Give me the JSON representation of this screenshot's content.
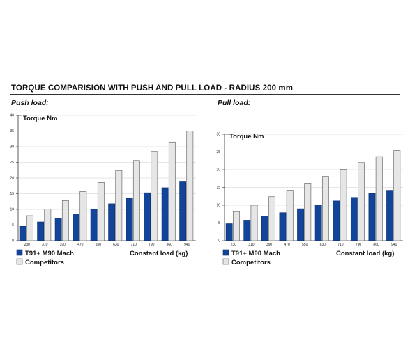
{
  "title": "TORQUE COMPARISION WITH PUSH AND PULL LOAD - RADIUS 200 mm",
  "colors": {
    "series_primary": "#12449a",
    "series_secondary": "#e6e6e6",
    "bar_outline": "#555555",
    "grid": "#cccccc"
  },
  "chart_data": [
    {
      "type": "bar",
      "panel_label": "Push load:",
      "ylabel": "Torque Nm",
      "xlabel": "Constant load (kg)",
      "ylim": [
        0,
        40
      ],
      "yticks": [
        0,
        5,
        10,
        15,
        20,
        25,
        30,
        35,
        40
      ],
      "grid": true,
      "legend_placement": "bottom-left",
      "categories": [
        "230",
        "310",
        "390",
        "470",
        "550",
        "630",
        "710",
        "790",
        "860",
        "940"
      ],
      "series": [
        {
          "name": "T91+ M90 Mach",
          "values": [
            4.6,
            6.0,
            7.2,
            8.6,
            10.1,
            11.8,
            13.5,
            15.3,
            16.9,
            19.0
          ]
        },
        {
          "name": "Competitors",
          "values": [
            8.0,
            10.1,
            12.8,
            15.7,
            18.6,
            22.4,
            25.6,
            28.5,
            31.5,
            35.0
          ]
        }
      ]
    },
    {
      "type": "bar",
      "panel_label": "Pull load:",
      "ylabel": "Torque Nm",
      "xlabel": "Constant load (kg)",
      "ylim": [
        0,
        30
      ],
      "yticks": [
        0,
        5,
        10,
        15,
        20,
        25,
        30
      ],
      "grid": true,
      "legend_placement": "bottom-left",
      "categories": [
        "230",
        "310",
        "390",
        "470",
        "550",
        "630",
        "710",
        "790",
        "860",
        "940"
      ],
      "series": [
        {
          "name": "T91+ M90 Mach",
          "values": [
            4.8,
            5.8,
            7.0,
            7.9,
            9.0,
            10.1,
            11.2,
            12.2,
            13.3,
            14.2
          ]
        },
        {
          "name": "Competitors",
          "values": [
            8.2,
            10.0,
            12.4,
            14.2,
            16.2,
            18.1,
            20.1,
            22.0,
            23.7,
            25.4
          ]
        }
      ]
    }
  ]
}
